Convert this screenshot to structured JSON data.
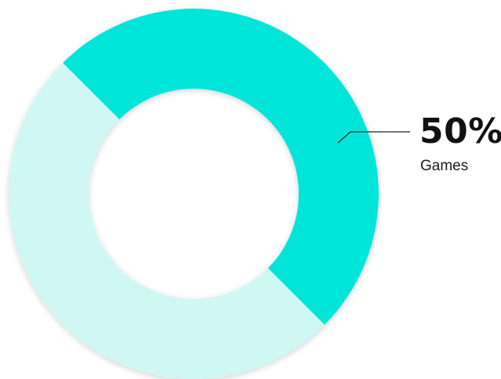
{
  "chart_data": {
    "type": "pie",
    "variant": "donut",
    "slices": [
      {
        "value": 50,
        "color": "#00e5d9",
        "highlighted": true
      },
      {
        "value": 50,
        "color": "#cff8f5",
        "highlighted": false
      }
    ],
    "annotation": {
      "value_label": "50%",
      "category_label": "Games"
    },
    "legend": "none"
  }
}
